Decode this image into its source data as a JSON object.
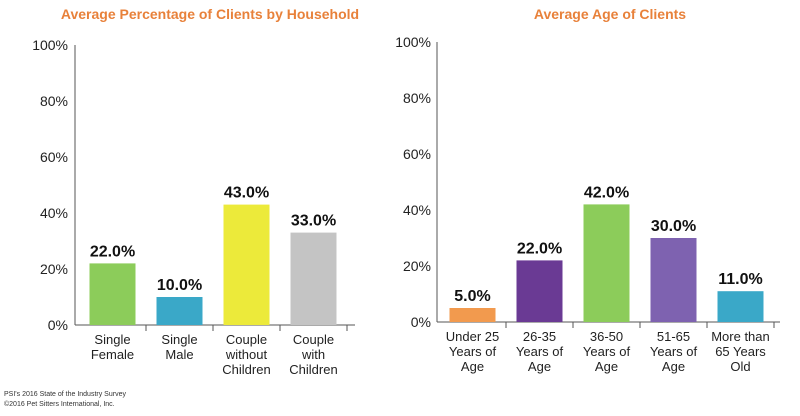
{
  "footer": {
    "line1": "PSI's 2016 State of the Industry Survey",
    "line2": "©2016 Pet Sitters International, Inc."
  },
  "chart_data": [
    {
      "type": "bar",
      "title": "Average Percentage of Clients by Household",
      "categories": [
        [
          "Single",
          "Female"
        ],
        [
          "Single",
          "Male"
        ],
        [
          "Couple",
          "without",
          "Children"
        ],
        [
          "Couple",
          "with",
          "Children"
        ]
      ],
      "values": [
        22.0,
        10.0,
        43.0,
        33.0
      ],
      "value_labels": [
        "22.0%",
        "10.0%",
        "43.0%",
        "33.0%"
      ],
      "colors": [
        "#8ccc5a",
        "#3aa8c8",
        "#ecea3a",
        "#c4c4c4"
      ],
      "yticks": [
        "0%",
        "20%",
        "40%",
        "60%",
        "80%",
        "100%"
      ],
      "ylim": [
        0,
        100
      ],
      "grid": false,
      "legend": "none"
    },
    {
      "type": "bar",
      "title": "Average Age of Clients",
      "categories": [
        [
          "Under 25",
          "Years of",
          "Age"
        ],
        [
          "26-35",
          "Years of",
          "Age"
        ],
        [
          "36-50",
          "Years of",
          "Age"
        ],
        [
          "51-65",
          "Years of",
          "Age"
        ],
        [
          "More than",
          "65 Years",
          "Old"
        ]
      ],
      "values": [
        5.0,
        22.0,
        42.0,
        30.0,
        11.0
      ],
      "value_labels": [
        "5.0%",
        "22.0%",
        "42.0%",
        "30.0%",
        "11.0%"
      ],
      "colors": [
        "#f29a4e",
        "#6a3a94",
        "#8ccc5a",
        "#7e62b0",
        "#3aa8c8"
      ],
      "yticks": [
        "0%",
        "20%",
        "40%",
        "60%",
        "80%",
        "100%"
      ],
      "ylim": [
        0,
        100
      ],
      "grid": false,
      "legend": "none"
    }
  ]
}
